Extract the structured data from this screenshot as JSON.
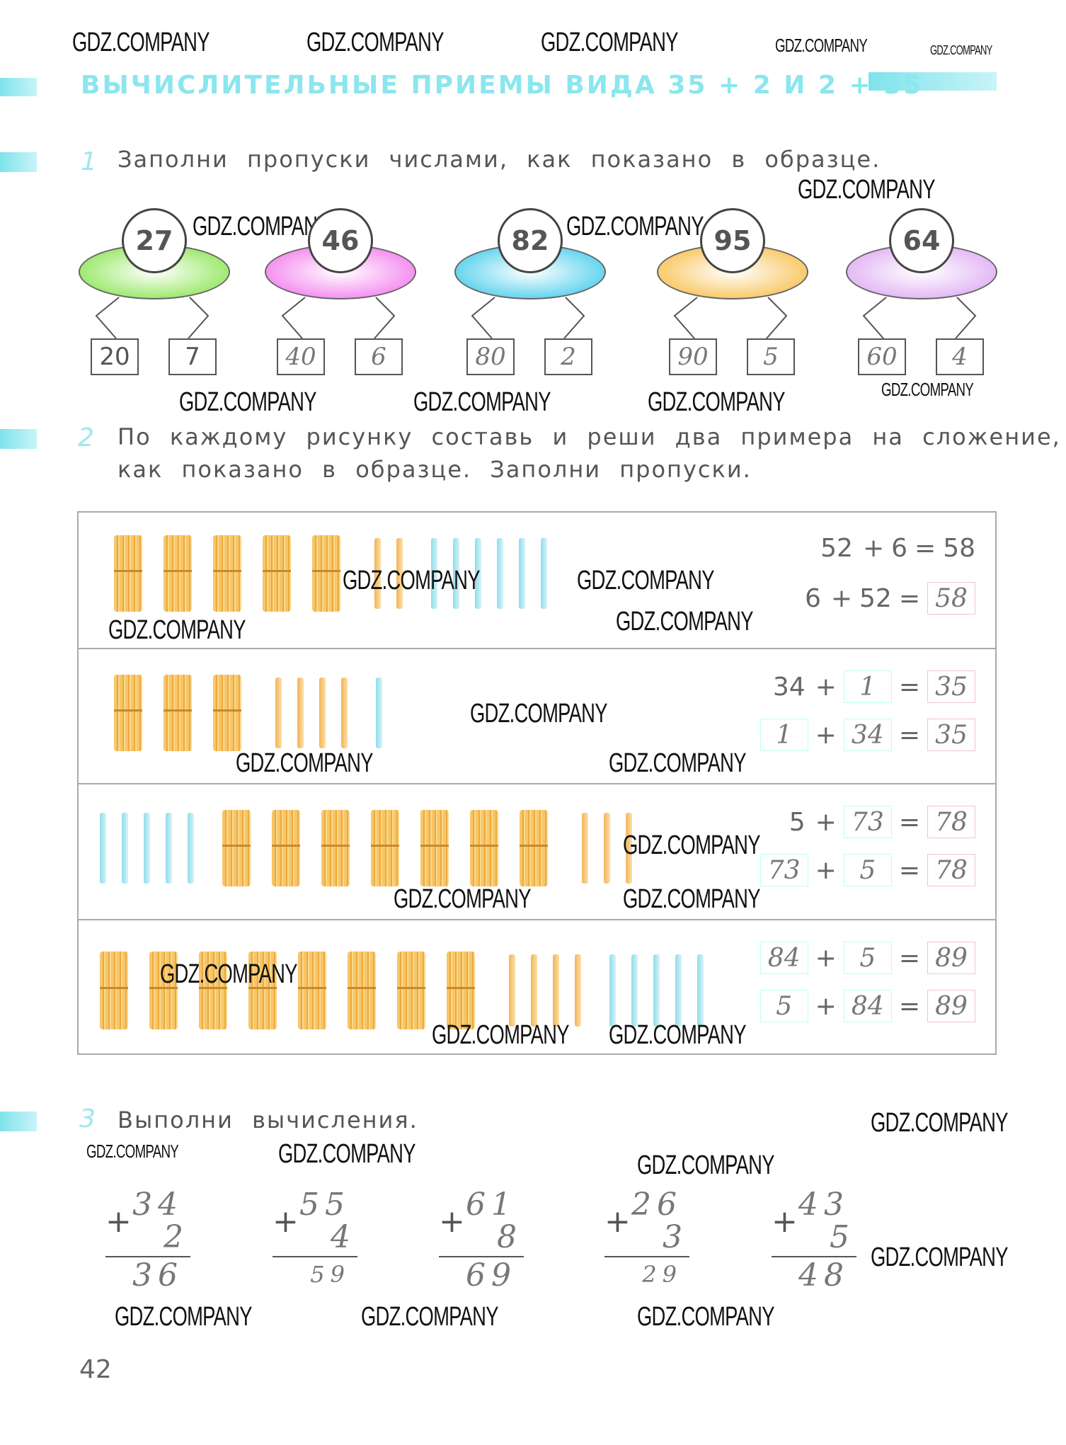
{
  "watermark": "GDZ.COMPANY",
  "header": {
    "title": "ВЫЧИСЛИТЕЛЬНЫЕ ПРИЕМЫ ВИДА 35 + 2 И 2 + 35"
  },
  "task1": {
    "number": "1",
    "text": "Заполни пропуски числами, как показано в образце.",
    "items": [
      {
        "total": "27",
        "color": "#9be86a",
        "parts": [
          "20",
          "7"
        ]
      },
      {
        "total": "46",
        "color": "#f48cf0",
        "parts": [
          "40",
          "6"
        ]
      },
      {
        "total": "82",
        "color": "#5fd3ee",
        "parts": [
          "80",
          "2"
        ]
      },
      {
        "total": "95",
        "color": "#f8c864",
        "parts": [
          "90",
          "5"
        ]
      },
      {
        "total": "64",
        "color": "#e2b6f4",
        "parts": [
          "60",
          "4"
        ]
      }
    ]
  },
  "task2": {
    "number": "2",
    "text_line1": "По каждому рисунку составь и реши два примера на сложение,",
    "text_line2": "как показано в образце. Заполни пропуски.",
    "rows": [
      {
        "sticks": [
          {
            "type": "bundle",
            "count": 5
          },
          {
            "type": "orange",
            "count": 2
          },
          {
            "type": "blue",
            "count": 6
          }
        ],
        "eq1": {
          "a": "52",
          "b": "6",
          "sum": "58"
        },
        "eq2": {
          "a": "6",
          "b": "52",
          "sum": "58"
        }
      },
      {
        "sticks": [
          {
            "type": "bundle",
            "count": 3
          },
          {
            "type": "orange",
            "count": 4
          },
          {
            "type": "blue",
            "count": 1
          }
        ],
        "eq1": {
          "a": "34",
          "b": "1",
          "sum": "35"
        },
        "eq2": {
          "a": "1",
          "b": "34",
          "sum": "35"
        }
      },
      {
        "sticks": [
          {
            "type": "blue",
            "count": 5
          },
          {
            "type": "bundle",
            "count": 7
          },
          {
            "type": "orange",
            "count": 3
          }
        ],
        "eq1": {
          "a": "5",
          "b": "73",
          "sum": "78"
        },
        "eq2": {
          "a": "73",
          "b": "5",
          "sum": "78"
        }
      },
      {
        "sticks": [
          {
            "type": "bundle",
            "count": 8
          },
          {
            "type": "orange",
            "count": 4
          },
          {
            "type": "blue",
            "count": 5
          }
        ],
        "eq1": {
          "a": "84",
          "b": "5",
          "sum": "89"
        },
        "eq2": {
          "a": "5",
          "b": "84",
          "sum": "89"
        }
      }
    ],
    "plus": "+",
    "equals": "="
  },
  "task3": {
    "number": "3",
    "text": "Выполни вычисления.",
    "columns": [
      {
        "a": "34",
        "b": "2",
        "sum": "36"
      },
      {
        "a": "55",
        "b": "4",
        "sum": "59"
      },
      {
        "a": "61",
        "b": "8",
        "sum": "69"
      },
      {
        "a": "26",
        "b": "3",
        "sum": "29"
      },
      {
        "a": "43",
        "b": "5",
        "sum": "48"
      }
    ]
  },
  "page_number": "42",
  "colors": {
    "accent": "#8be6ee",
    "bundle": "#f6c66a",
    "orange_stick": "#f5c27a",
    "blue_stick": "#a8e6f0"
  }
}
